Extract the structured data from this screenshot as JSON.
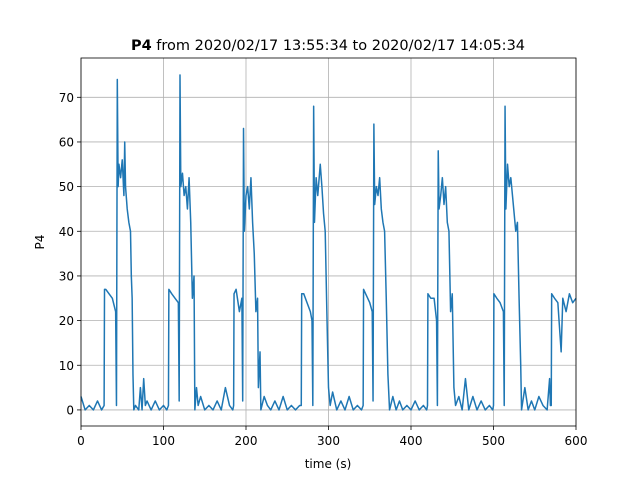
{
  "chart_data": {
    "type": "line",
    "title_name": "P4",
    "title": "from 2020/02/17 13:55:34 to 2020/02/17 14:05:34",
    "xlabel": "time (s)",
    "ylabel": "P4",
    "xlim": [
      0,
      600
    ],
    "xticks": [
      0,
      100,
      200,
      300,
      400,
      500,
      600
    ],
    "ylim": [
      -3.6,
      78.8
    ],
    "yticks": [
      0,
      10,
      20,
      30,
      40,
      50,
      60,
      70
    ],
    "grid": true,
    "series": [
      {
        "color": "#1f77b4",
        "x": [
          0,
          5,
          10,
          15,
          20,
          25,
          28,
          28.5,
          30,
          34,
          38,
          42,
          43,
          44,
          45,
          46,
          48,
          50,
          52,
          53,
          54,
          56,
          58,
          60,
          61,
          62,
          63,
          64,
          66,
          70,
          72,
          74,
          76,
          78,
          80,
          85,
          90,
          95,
          100,
          104,
          106,
          106.5,
          110,
          114,
          118,
          119,
          120,
          121,
          123,
          125,
          127,
          129,
          131,
          133,
          135,
          137,
          138,
          140,
          142,
          145,
          150,
          155,
          160,
          165,
          170,
          175,
          180,
          184,
          185,
          185.5,
          188,
          192,
          195,
          196,
          197,
          198,
          200,
          202,
          204,
          206,
          208,
          210,
          212,
          214,
          215,
          217,
          218,
          222,
          226,
          230,
          235,
          240,
          245,
          250,
          255,
          260,
          265,
          267,
          267.5,
          270,
          274,
          278,
          280,
          281,
          282,
          283,
          285,
          287,
          290,
          292,
          294,
          296,
          298,
          300,
          302,
          305,
          310,
          315,
          320,
          325,
          330,
          335,
          340,
          342,
          342.5,
          345,
          350,
          353,
          354,
          355,
          356,
          358,
          360,
          362,
          364,
          366,
          368,
          370,
          372,
          374,
          378,
          382,
          386,
          390,
          395,
          400,
          405,
          410,
          415,
          419,
          420,
          420.5,
          424,
          428,
          431,
          432,
          433,
          434,
          436,
          438,
          440,
          442,
          444,
          446,
          448,
          450,
          452,
          454,
          458,
          462,
          466,
          470,
          475,
          480,
          485,
          490,
          495,
          499,
          500,
          500.5,
          504,
          508,
          512,
          513,
          514,
          515,
          517,
          519,
          521,
          523,
          525,
          527,
          529,
          531,
          533,
          534,
          538,
          542,
          546,
          550,
          555,
          560,
          565,
          568,
          569,
          570,
          570.5,
          574,
          578,
          582,
          584,
          588,
          592,
          596,
          600
        ],
        "values": [
          3,
          0,
          1,
          0,
          2,
          0,
          1,
          27,
          27,
          26,
          25,
          22,
          1,
          74,
          50,
          55,
          52,
          56,
          48,
          60,
          50,
          45,
          42,
          40,
          30,
          25,
          8,
          0,
          1,
          0,
          5,
          0,
          7,
          1,
          2,
          0,
          2,
          0,
          1,
          0,
          1,
          27,
          26,
          25,
          24,
          2,
          75,
          50,
          53,
          48,
          50,
          45,
          52,
          42,
          25,
          30,
          0,
          5,
          1,
          3,
          0,
          1,
          0,
          2,
          0,
          5,
          1,
          0,
          1,
          26,
          27,
          22,
          25,
          2,
          63,
          40,
          48,
          50,
          45,
          52,
          42,
          35,
          22,
          25,
          5,
          13,
          0,
          3,
          1,
          0,
          2,
          0,
          3,
          0,
          1,
          0,
          1,
          1,
          26,
          26,
          24,
          22,
          20,
          1,
          68,
          42,
          52,
          48,
          55,
          50,
          44,
          40,
          22,
          5,
          1,
          4,
          0,
          2,
          0,
          3,
          0,
          1,
          0,
          1,
          27,
          26,
          24,
          22,
          2,
          64,
          46,
          50,
          48,
          52,
          45,
          42,
          40,
          25,
          8,
          0,
          3,
          0,
          2,
          0,
          1,
          0,
          2,
          0,
          1,
          0,
          1,
          26,
          25,
          25,
          20,
          1,
          58,
          45,
          48,
          52,
          46,
          50,
          42,
          40,
          22,
          26,
          5,
          1,
          3,
          0,
          7,
          0,
          3,
          0,
          2,
          0,
          1,
          0,
          1,
          26,
          25,
          24,
          22,
          1,
          68,
          45,
          55,
          50,
          52,
          48,
          44,
          40,
          42,
          25,
          10,
          0,
          5,
          0,
          2,
          0,
          3,
          1,
          0,
          7,
          1,
          1,
          26,
          25,
          24,
          13,
          25,
          22,
          26,
          24,
          25
        ]
      }
    ]
  }
}
